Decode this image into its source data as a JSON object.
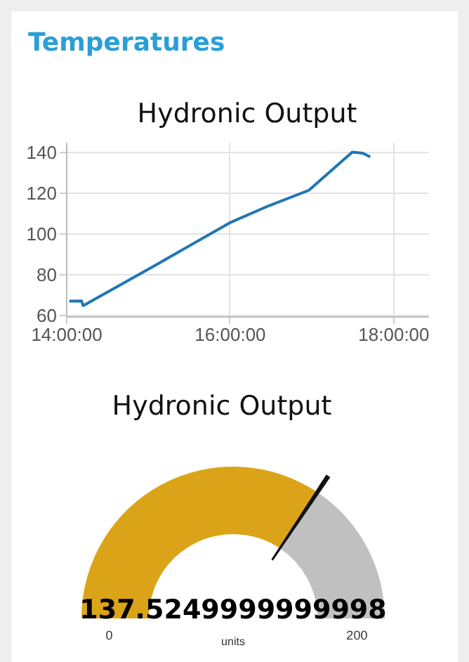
{
  "chart_data": [
    {
      "type": "line",
      "title": "Hydronic Output",
      "annotations": [
        "Temperatures"
      ],
      "x": [
        14.04,
        14.19,
        14.21,
        15.1,
        16.0,
        16.48,
        16.97,
        17.5,
        17.63,
        17.72
      ],
      "series": [
        {
          "color": "#1f77b4",
          "values": [
            66.9,
            67,
            64.7,
            84.7,
            105.3,
            113.7,
            121.3,
            140,
            139.5,
            137.7
          ]
        }
      ],
      "xlim": [
        14,
        18.43
      ],
      "xticks": [
        {
          "value": 14,
          "label": "14:00:00"
        },
        {
          "value": 16,
          "label": "16:00:00"
        },
        {
          "value": 18,
          "label": "18:00:00"
        }
      ],
      "ylim": [
        59.5,
        145
      ],
      "yticks": [
        60,
        80,
        100,
        120,
        140
      ],
      "grid": true
    },
    {
      "type": "other",
      "title": "Hydronic Output",
      "values": [
        137.5249999999998
      ],
      "annotations": [
        "0",
        "200"
      ],
      "ylabel": "units",
      "data_labels": true
    }
  ]
}
